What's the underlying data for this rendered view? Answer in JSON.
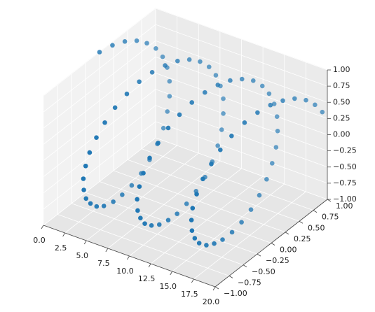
{
  "chart_data": {
    "type": "scatter3d",
    "color": "#1f77b4",
    "grid": true,
    "x": [
      0,
      0.2,
      0.4,
      0.61,
      0.81,
      1.01,
      1.21,
      1.41,
      1.62,
      1.82,
      2.02,
      2.22,
      2.42,
      2.63,
      2.83,
      3.03,
      3.23,
      3.43,
      3.64,
      3.84,
      4.04,
      4.24,
      4.44,
      4.65,
      4.85,
      5.05,
      5.25,
      5.45,
      5.66,
      5.86,
      6.06,
      6.26,
      6.46,
      6.67,
      6.87,
      7.07,
      7.27,
      7.47,
      7.68,
      7.88,
      8.08,
      8.28,
      8.48,
      8.69,
      8.89,
      9.09,
      9.29,
      9.49,
      9.7,
      9.9,
      10.1,
      10.3,
      10.51,
      10.71,
      10.91,
      11.11,
      11.31,
      11.52,
      11.72,
      11.92,
      12.12,
      12.32,
      12.53,
      12.73,
      12.93,
      13.13,
      13.33,
      13.54,
      13.74,
      13.94,
      14.14,
      14.34,
      14.55,
      14.75,
      14.95,
      15.15,
      15.35,
      15.56,
      15.76,
      15.96,
      16.16,
      16.36,
      16.57,
      16.77,
      16.97,
      17.17,
      17.37,
      17.58,
      17.78,
      17.98,
      18.18,
      18.38,
      18.59,
      18.79,
      18.99,
      19.19,
      19.39,
      19.6,
      19.8,
      20
    ],
    "y": [
      0,
      0.2,
      0.39,
      0.57,
      0.72,
      0.85,
      0.94,
      0.99,
      1.0,
      0.97,
      0.9,
      0.8,
      0.66,
      0.49,
      0.31,
      0.11,
      -0.09,
      -0.28,
      -0.48,
      -0.64,
      -0.78,
      -0.89,
      -0.96,
      -1.0,
      -0.99,
      -0.95,
      -0.86,
      -0.74,
      -0.59,
      -0.41,
      -0.22,
      -0.02,
      0.18,
      0.37,
      0.55,
      0.71,
      0.84,
      0.93,
      0.98,
      1.0,
      0.97,
      0.91,
      0.81,
      0.68,
      0.52,
      0.33,
      0.13,
      -0.07,
      -0.26,
      -0.45,
      -0.62,
      -0.77,
      -0.88,
      -0.96,
      -1.0,
      -0.99,
      -0.95,
      -0.87,
      -0.75,
      -0.6,
      -0.43,
      -0.24,
      -0.04,
      0.16,
      0.35,
      0.53,
      0.7,
      0.83,
      0.92,
      0.98,
      1.0,
      0.98,
      0.92,
      0.82,
      0.69,
      0.53,
      0.35,
      0.15,
      -0.05,
      -0.25,
      -0.43,
      -0.6,
      -0.76,
      -0.87,
      -0.95,
      -0.99,
      -1.0,
      -0.96,
      -0.88,
      -0.76,
      -0.63,
      -0.46,
      -0.26,
      -0.06,
      0.14,
      0.33,
      0.51,
      0.68,
      0.81,
      0.91
    ],
    "z": [
      1,
      0.98,
      0.92,
      0.82,
      0.69,
      0.53,
      0.35,
      0.16,
      -0.05,
      -0.25,
      -0.43,
      -0.61,
      -0.75,
      -0.87,
      -0.95,
      -0.99,
      -0.99,
      -0.96,
      -0.88,
      -0.77,
      -0.62,
      -0.46,
      -0.27,
      -0.06,
      0.14,
      0.33,
      0.51,
      0.67,
      0.81,
      0.91,
      0.98,
      1.0,
      0.98,
      0.93,
      0.84,
      0.71,
      0.55,
      0.37,
      0.18,
      -0.02,
      -0.22,
      -0.42,
      -0.59,
      -0.74,
      -0.86,
      -0.94,
      -0.99,
      -1.0,
      -0.96,
      -0.89,
      -0.78,
      -0.64,
      -0.47,
      -0.29,
      -0.08,
      0.12,
      0.31,
      0.5,
      0.66,
      0.8,
      0.9,
      0.97,
      1.0,
      0.99,
      0.94,
      0.85,
      0.72,
      0.56,
      0.39,
      0.2,
      0.0,
      -0.2,
      -0.4,
      -0.57,
      -0.72,
      -0.85,
      -0.94,
      -0.99,
      -1.0,
      -0.97,
      -0.9,
      -0.8,
      -0.65,
      -0.49,
      -0.31,
      -0.11,
      0.09,
      0.29,
      0.48,
      0.64,
      0.78,
      0.89,
      0.97,
      1.0,
      0.99,
      0.94,
      0.86,
      0.73,
      0.58,
      0.41
    ],
    "xlim": [
      0,
      20
    ],
    "xticks": [
      {
        "value": 0,
        "label": "0.0"
      },
      {
        "value": 2.5,
        "label": "2.5"
      },
      {
        "value": 5,
        "label": "5.0"
      },
      {
        "value": 7.5,
        "label": "7.5"
      },
      {
        "value": 10,
        "label": "10.0"
      },
      {
        "value": 12.5,
        "label": "12.5"
      },
      {
        "value": 15,
        "label": "15.0"
      },
      {
        "value": 17.5,
        "label": "17.5"
      },
      {
        "value": 20,
        "label": "20.0"
      }
    ],
    "ylim": [
      -1,
      1
    ],
    "yticks": [
      {
        "value": -1,
        "label": "−1.00"
      },
      {
        "value": -0.75,
        "label": "−0.75"
      },
      {
        "value": -0.5,
        "label": "−0.50"
      },
      {
        "value": -0.25,
        "label": "−0.25"
      },
      {
        "value": 0,
        "label": "0.00"
      },
      {
        "value": 0.25,
        "label": "0.25"
      },
      {
        "value": 0.5,
        "label": "0.50"
      },
      {
        "value": 0.75,
        "label": "0.75"
      },
      {
        "value": 1,
        "label": "1.00"
      }
    ],
    "zlim": [
      -1,
      1
    ],
    "zticks": [
      {
        "value": -1,
        "label": "−1.00"
      },
      {
        "value": -0.75,
        "label": "−0.75"
      },
      {
        "value": -0.5,
        "label": "−0.50"
      },
      {
        "value": -0.25,
        "label": "−0.25"
      },
      {
        "value": 0,
        "label": "0.00"
      },
      {
        "value": 0.25,
        "label": "0.25"
      },
      {
        "value": 0.5,
        "label": "0.50"
      },
      {
        "value": 0.75,
        "label": "0.75"
      },
      {
        "value": 1,
        "label": "1.00"
      }
    ]
  }
}
